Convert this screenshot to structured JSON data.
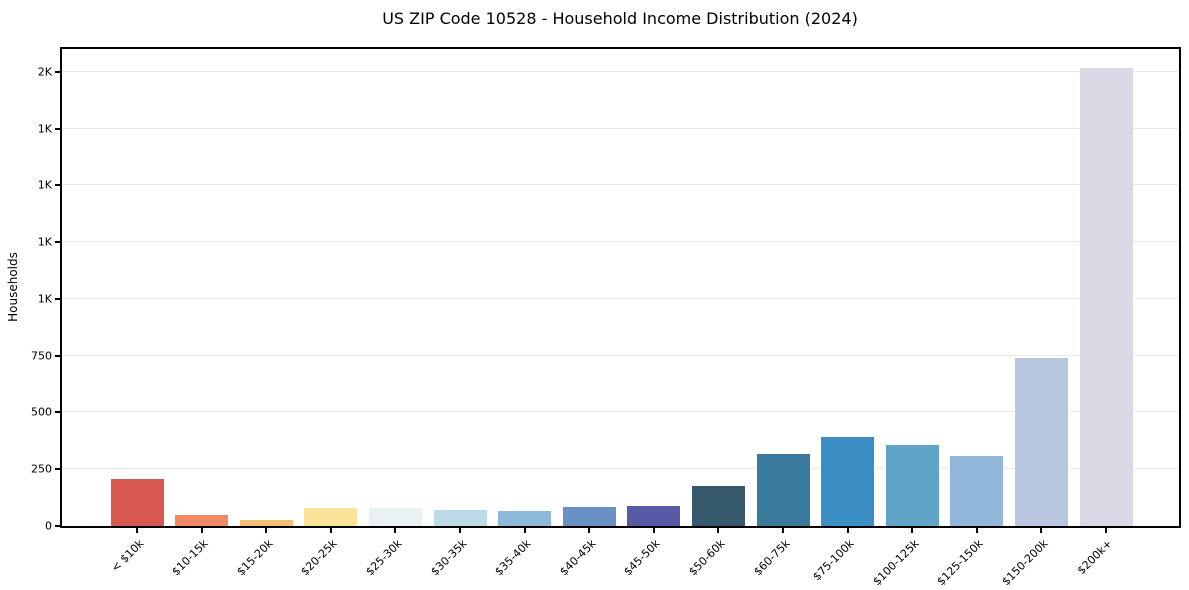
{
  "title": "US ZIP Code 10528 - Household Income Distribution (2024)",
  "chart_data": {
    "type": "bar",
    "title": "US ZIP Code 10528 - Household Income Distribution (2024)",
    "xlabel": "",
    "ylabel": "Households",
    "categories": [
      "< $10k",
      "$10-15k",
      "$15-20k",
      "$20-25k",
      "$25-30k",
      "$30-35k",
      "$35-40k",
      "$40-45k",
      "$45-50k",
      "$50-60k",
      "$60-75k",
      "$75-100k",
      "$100-125k",
      "$125-150k",
      "$150-200k",
      "$200k+"
    ],
    "values": [
      205,
      48,
      28,
      81,
      80,
      71,
      68,
      83,
      86,
      175,
      318,
      390,
      356,
      310,
      740,
      2015
    ],
    "bar_colors": [
      "#d65850",
      "#f18a62",
      "#f5bd78",
      "#fbe39a",
      "#e8f2f2",
      "#bcdbe9",
      "#8fb9da",
      "#6890c5",
      "#585aa6",
      "#36596c",
      "#3a7b9d",
      "#3a8ec4",
      "#60a4c9",
      "#90b6d9",
      "#b8c7df",
      "#d9dae5"
    ],
    "y_ticks": [
      {
        "value": 0,
        "label": "0"
      },
      {
        "value": 250,
        "label": "250"
      },
      {
        "value": 500,
        "label": "500"
      },
      {
        "value": 750,
        "label": "750"
      },
      {
        "value": 1000,
        "label": "1K"
      },
      {
        "value": 1250,
        "label": "1K"
      },
      {
        "value": 1500,
        "label": "1K"
      },
      {
        "value": 1750,
        "label": "1K"
      },
      {
        "value": 2000,
        "label": "2K"
      }
    ],
    "ylim": [
      0,
      2100
    ],
    "grid": "horizontal",
    "grid_color": "#e9e9e9",
    "axis_color": "#000000",
    "background_color": "#ffffff",
    "legend": "none",
    "x_tick_rotation_deg": 45
  }
}
